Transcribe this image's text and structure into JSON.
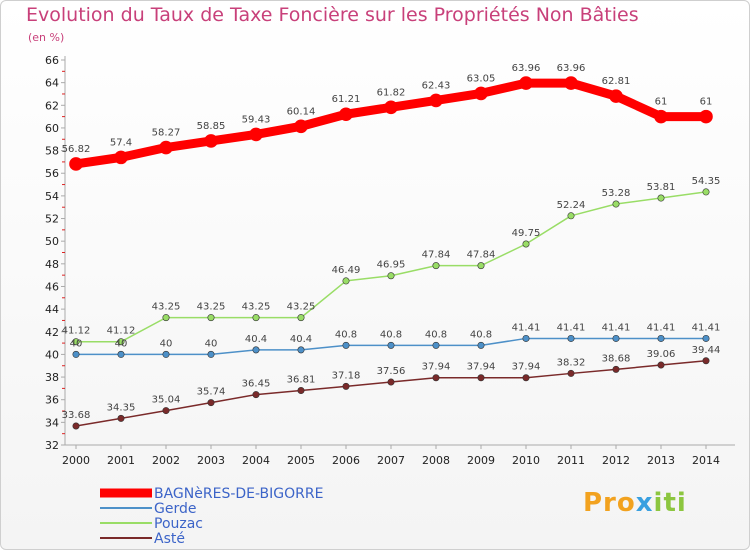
{
  "chart_data": {
    "type": "line",
    "title": "Evolution du Taux de Taxe Foncière sur les Propriétés Non Bâties",
    "subtitle": "(en %)",
    "xlabel": "",
    "ylabel": "",
    "ylim": [
      32,
      66
    ],
    "yticks": [
      32,
      34,
      36,
      38,
      40,
      42,
      44,
      46,
      48,
      50,
      52,
      54,
      56,
      58,
      60,
      62,
      64,
      66
    ],
    "grid": false,
    "legend_position": "bottom-left",
    "x": [
      "2000",
      "2001",
      "2002",
      "2003",
      "2004",
      "2005",
      "2006",
      "2007",
      "2008",
      "2009",
      "2010",
      "2011",
      "2012",
      "2013",
      "2014"
    ],
    "series": [
      {
        "name": "BAGNèRES-DE-BIGORRE",
        "color": "#ff0000",
        "values": [
          56.82,
          57.4,
          58.27,
          58.85,
          59.43,
          60.14,
          61.21,
          61.82,
          62.43,
          63.05,
          63.96,
          63.96,
          62.81,
          61,
          61
        ],
        "labels": [
          "56.82",
          "57.4",
          "58.27",
          "58.85",
          "59.43",
          "60.14",
          "61.21",
          "61.82",
          "62.43",
          "63.05",
          "63.96",
          "63.96",
          "62.81",
          "61",
          "61"
        ]
      },
      {
        "name": "Gerde",
        "color": "#4d90c8",
        "values": [
          40,
          40,
          40,
          40,
          40.4,
          40.4,
          40.8,
          40.8,
          40.8,
          40.8,
          41.41,
          41.41,
          41.41,
          41.41,
          41.41
        ],
        "labels": [
          "40",
          "40",
          "40",
          "40",
          "40.4",
          "40.4",
          "40.8",
          "40.8",
          "40.8",
          "40.8",
          "41.41",
          "41.41",
          "41.41",
          "41.41",
          "41.41"
        ]
      },
      {
        "name": "Pouzac",
        "color": "#99dd66",
        "values": [
          41.12,
          41.12,
          43.25,
          43.25,
          43.25,
          43.25,
          46.49,
          46.95,
          47.84,
          47.84,
          49.75,
          52.24,
          53.28,
          53.81,
          54.35
        ],
        "labels": [
          "41.12",
          "41.12",
          "43.25",
          "43.25",
          "43.25",
          "43.25",
          "46.49",
          "46.95",
          "47.84",
          "47.84",
          "49.75",
          "52.24",
          "53.28",
          "53.81",
          "54.35"
        ]
      },
      {
        "name": "Asté",
        "color": "#7a2a2a",
        "values": [
          33.68,
          34.35,
          35.04,
          35.74,
          36.45,
          36.81,
          37.18,
          37.56,
          37.94,
          37.94,
          37.94,
          38.32,
          38.68,
          39.06,
          39.44
        ],
        "labels": [
          "33.68",
          "34.35",
          "35.04",
          "35.74",
          "36.45",
          "36.81",
          "37.18",
          "37.56",
          "37.94",
          "37.94",
          "37.94",
          "38.32",
          "38.68",
          "39.06",
          "39.44"
        ]
      }
    ]
  },
  "logo": {
    "part1": "Pro",
    "part2": "x",
    "part3": "iti"
  },
  "colors": {
    "axis": "#aaaaaa",
    "tick_mark": "#dd2222",
    "title": "#c8407a"
  }
}
